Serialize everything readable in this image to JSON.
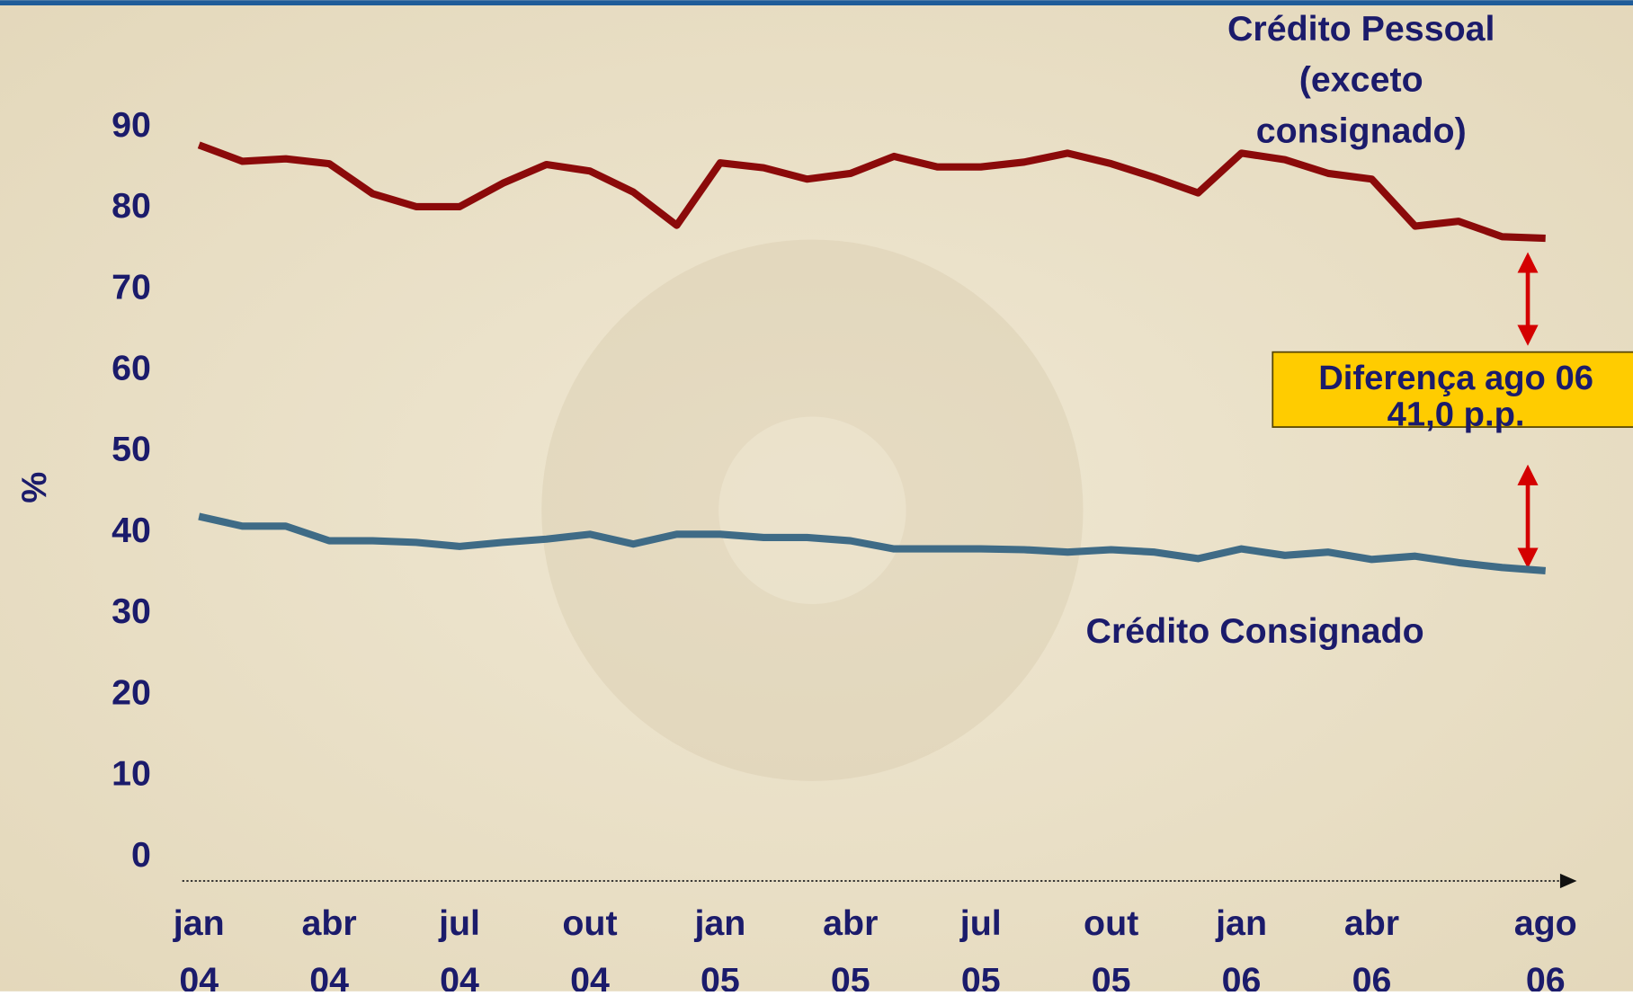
{
  "chart_data": {
    "type": "line",
    "categories": [
      "jan 04",
      null,
      null,
      "abr 04",
      null,
      null,
      "jul 04",
      null,
      null,
      "out 04",
      null,
      null,
      "jan 05",
      null,
      null,
      "abr 05",
      null,
      null,
      "jul 05",
      null,
      null,
      "out 05",
      null,
      null,
      "jan 06",
      null,
      null,
      "abr 06",
      null,
      null,
      null,
      "ago 06"
    ],
    "series": [
      {
        "name": "Crédito Pessoal (exceto consignado)",
        "color": "#8b0a0a",
        "values": [
          87.8,
          85.8,
          86.1,
          85.5,
          81.8,
          80.2,
          80.2,
          83.1,
          85.4,
          84.6,
          82.0,
          77.9,
          85.6,
          85.0,
          83.6,
          84.3,
          86.4,
          85.1,
          85.1,
          85.7,
          86.8,
          85.5,
          83.8,
          81.9,
          86.8,
          86.0,
          84.3,
          83.6,
          77.8,
          78.4,
          76.5,
          76.3
        ]
      },
      {
        "name": "Crédito Consignado",
        "color": "#3f6b86",
        "values": [
          42.0,
          40.8,
          40.8,
          39.0,
          39.0,
          38.8,
          38.3,
          38.8,
          39.2,
          39.8,
          38.6,
          39.8,
          39.8,
          39.4,
          39.4,
          39.0,
          38.0,
          38.0,
          38.0,
          37.9,
          37.6,
          37.9,
          37.6,
          36.8,
          38.0,
          37.2,
          37.6,
          36.7,
          37.1,
          36.3,
          35.7,
          35.3
        ]
      }
    ],
    "ylabel": "%",
    "ylim": [
      0,
      90
    ],
    "yticks": [
      0,
      10,
      20,
      30,
      40,
      50,
      60,
      70,
      80,
      90
    ],
    "annotation": {
      "title": "Diferença ago 06",
      "value": "41,0 p.p."
    }
  }
}
